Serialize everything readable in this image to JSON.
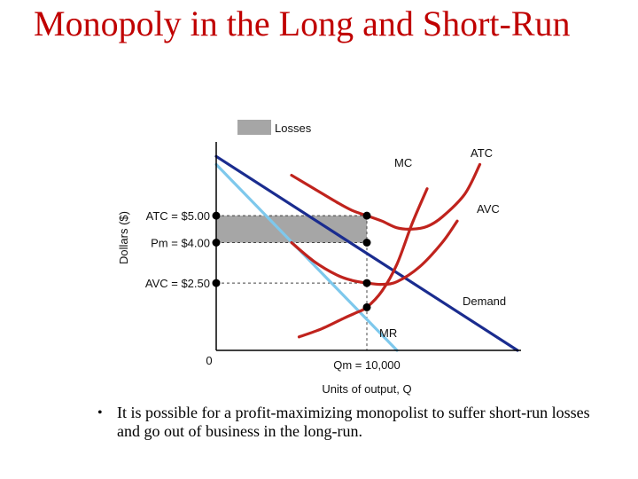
{
  "slide": {
    "title": "Monopoly in the Long and Short-Run",
    "bullet_symbol": "•",
    "bullet_text": "It is possible for a profit-maximizing monopolist to suffer short-run losses and go out of business in the long-run."
  },
  "chart_data": {
    "type": "line",
    "title": "",
    "xlabel": "Units of output, Q",
    "ylabel": "Dollars ($)",
    "origin_label": "0",
    "xlim": [
      0,
      20000
    ],
    "ylim": [
      0,
      8
    ],
    "legend": {
      "placement": "top-left",
      "label": "Losses",
      "color": "#a6a6a6"
    },
    "qm": 10000,
    "qm_label": "Qm = 10,000",
    "price_levels": [
      {
        "name": "atc",
        "value": 5.0,
        "label": "ATC = $5.00"
      },
      {
        "name": "pm",
        "value": 4.0,
        "label": "Pm = $4.00"
      },
      {
        "name": "avc",
        "value": 2.5,
        "label": "AVC = $2.50"
      }
    ],
    "points_at_qm": [
      5.0,
      4.0,
      2.5,
      1.6
    ],
    "series": [
      {
        "name": "Demand",
        "color": "#1a2c8f",
        "x": [
          0,
          20000
        ],
        "y": [
          7.2,
          0
        ]
      },
      {
        "name": "MR",
        "color": "#7ec8ec",
        "x": [
          0,
          12000
        ],
        "y": [
          6.9,
          0
        ]
      },
      {
        "name": "MC",
        "color": "#c0231d",
        "x": [
          5500,
          7000,
          8500,
          9300,
          10000,
          11000,
          12000,
          13000,
          14000
        ],
        "y": [
          0.5,
          0.8,
          1.2,
          1.4,
          1.6,
          2.2,
          3.2,
          4.7,
          6.0
        ]
      },
      {
        "name": "ATC",
        "color": "#c0231d",
        "x": [
          5000,
          6500,
          8000,
          9000,
          10000,
          11000,
          12000,
          13000,
          14000,
          15000,
          16500,
          17500
        ],
        "y": [
          6.5,
          6.0,
          5.5,
          5.2,
          5.0,
          4.8,
          4.55,
          4.5,
          4.6,
          4.95,
          5.8,
          6.9
        ]
      },
      {
        "name": "AVC",
        "color": "#c0231d",
        "x": [
          5000,
          6500,
          8000,
          9000,
          10000,
          11000,
          12000,
          13500,
          15000,
          16000
        ],
        "y": [
          4.0,
          3.3,
          2.8,
          2.6,
          2.5,
          2.45,
          2.55,
          3.1,
          4.0,
          4.8
        ]
      }
    ]
  }
}
